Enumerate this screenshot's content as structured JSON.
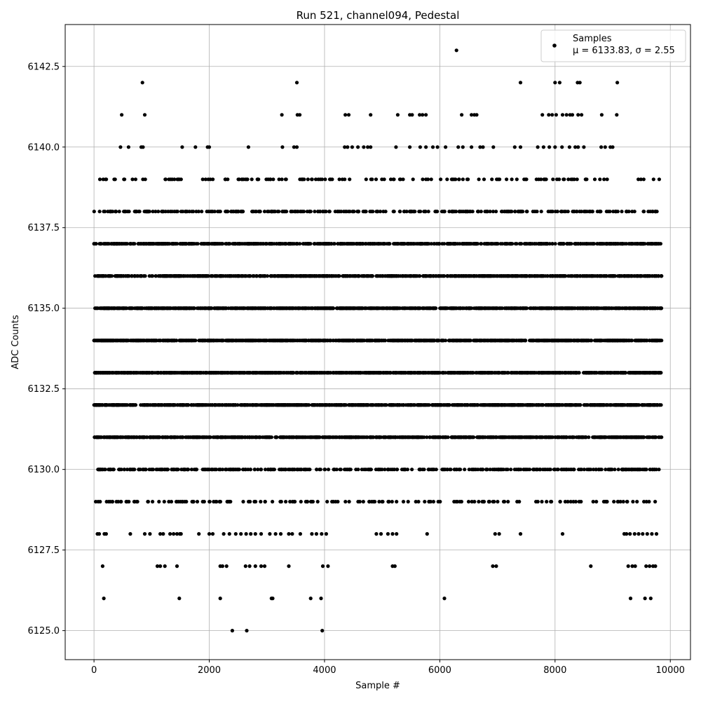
{
  "chart_data": {
    "type": "scatter",
    "title": "Run 521, channel094, Pedestal",
    "xlabel": "Sample #",
    "ylabel": "ADC Counts",
    "xlim": [
      -500,
      10350
    ],
    "ylim": [
      6124.1,
      6143.8
    ],
    "xticks": [
      0,
      2000,
      4000,
      6000,
      8000,
      10000
    ],
    "xtick_labels": [
      "0",
      "2000",
      "4000",
      "6000",
      "8000",
      "10000"
    ],
    "yticks": [
      6125.0,
      6127.5,
      6130.0,
      6132.5,
      6135.0,
      6137.5,
      6140.0,
      6142.5
    ],
    "ytick_labels": [
      "6125.0",
      "6127.5",
      "6130.0",
      "6132.5",
      "6135.0",
      "6137.5",
      "6140.0",
      "6142.5"
    ],
    "grid": true,
    "legend_position": "top-right",
    "series": [
      {
        "name": "Samples",
        "color": "#000000",
        "marker": "circle",
        "annotation": "μ = 6133.83, σ = 2.55",
        "bands": [
          {
            "y": 6131,
            "n": 900,
            "gaps": []
          },
          {
            "y": 6132,
            "n": 1050,
            "gaps": []
          },
          {
            "y": 6133,
            "n": 1180,
            "gaps": []
          },
          {
            "y": 6134,
            "n": 1230,
            "gaps": []
          },
          {
            "y": 6135,
            "n": 1120,
            "gaps": []
          },
          {
            "y": 6136,
            "n": 880,
            "gaps": []
          },
          {
            "y": 6137,
            "n": 760,
            "gaps": []
          },
          {
            "y": 6130,
            "n": 420,
            "gaps": []
          },
          {
            "y": 6138,
            "n": 330,
            "gaps": []
          },
          {
            "y": 6129,
            "n": 170,
            "gaps": []
          },
          {
            "y": 6139,
            "n": 140,
            "gaps": []
          }
        ],
        "points": [
          [
            150,
            6127
          ],
          [
            170,
            6126
          ],
          [
            1100,
            6127
          ],
          [
            1150,
            6127
          ],
          [
            1230,
            6127
          ],
          [
            1440,
            6127
          ],
          [
            1480,
            6126
          ],
          [
            2190,
            6127
          ],
          [
            2230,
            6127
          ],
          [
            2300,
            6127
          ],
          [
            2190,
            6126
          ],
          [
            2400,
            6125
          ],
          [
            2650,
            6125
          ],
          [
            2630,
            6127
          ],
          [
            2700,
            6127
          ],
          [
            2800,
            6127
          ],
          [
            2900,
            6127
          ],
          [
            2960,
            6127
          ],
          [
            3080,
            6126
          ],
          [
            3100,
            6126
          ],
          [
            3380,
            6127
          ],
          [
            3760,
            6126
          ],
          [
            3940,
            6126
          ],
          [
            3960,
            6125
          ],
          [
            3970,
            6127
          ],
          [
            4060,
            6127
          ],
          [
            5180,
            6127
          ],
          [
            5220,
            6127
          ],
          [
            6080,
            6126
          ],
          [
            6920,
            6127
          ],
          [
            6980,
            6127
          ],
          [
            8620,
            6127
          ],
          [
            9270,
            6127
          ],
          [
            9340,
            6127
          ],
          [
            9390,
            6127
          ],
          [
            9310,
            6126
          ],
          [
            9560,
            6126
          ],
          [
            9660,
            6126
          ],
          [
            9580,
            6127
          ],
          [
            9640,
            6127
          ],
          [
            9700,
            6127
          ],
          [
            9740,
            6127
          ],
          [
            60,
            6128
          ],
          [
            90,
            6128
          ],
          [
            180,
            6128
          ],
          [
            210,
            6128
          ],
          [
            630,
            6128
          ],
          [
            880,
            6128
          ],
          [
            970,
            6128
          ],
          [
            1150,
            6128
          ],
          [
            1200,
            6128
          ],
          [
            1320,
            6128
          ],
          [
            1380,
            6128
          ],
          [
            1440,
            6128
          ],
          [
            1490,
            6128
          ],
          [
            1510,
            6128
          ],
          [
            1820,
            6128
          ],
          [
            2000,
            6128
          ],
          [
            2060,
            6128
          ],
          [
            2250,
            6128
          ],
          [
            2350,
            6128
          ],
          [
            2460,
            6128
          ],
          [
            2550,
            6128
          ],
          [
            2640,
            6128
          ],
          [
            2720,
            6128
          ],
          [
            2800,
            6128
          ],
          [
            2900,
            6128
          ],
          [
            3050,
            6128
          ],
          [
            3150,
            6128
          ],
          [
            3240,
            6128
          ],
          [
            3380,
            6128
          ],
          [
            3440,
            6128
          ],
          [
            3580,
            6128
          ],
          [
            3780,
            6128
          ],
          [
            3860,
            6128
          ],
          [
            3950,
            6128
          ],
          [
            4030,
            6128
          ],
          [
            4900,
            6128
          ],
          [
            4980,
            6128
          ],
          [
            5100,
            6128
          ],
          [
            5180,
            6128
          ],
          [
            5250,
            6128
          ],
          [
            5780,
            6128
          ],
          [
            6960,
            6128
          ],
          [
            7030,
            6128
          ],
          [
            7400,
            6128
          ],
          [
            8130,
            6128
          ],
          [
            9200,
            6128
          ],
          [
            9240,
            6128
          ],
          [
            9300,
            6128
          ],
          [
            9380,
            6128
          ],
          [
            9450,
            6128
          ],
          [
            9520,
            6128
          ],
          [
            9600,
            6128
          ],
          [
            9680,
            6128
          ],
          [
            9760,
            6128
          ],
          [
            460,
            6140
          ],
          [
            600,
            6140
          ],
          [
            820,
            6140
          ],
          [
            850,
            6140
          ],
          [
            1530,
            6140
          ],
          [
            1760,
            6140
          ],
          [
            1970,
            6140
          ],
          [
            2000,
            6140
          ],
          [
            2680,
            6140
          ],
          [
            3270,
            6140
          ],
          [
            3470,
            6140
          ],
          [
            3520,
            6140
          ],
          [
            4350,
            6140
          ],
          [
            4400,
            6140
          ],
          [
            4480,
            6140
          ],
          [
            4580,
            6140
          ],
          [
            4680,
            6140
          ],
          [
            4750,
            6140
          ],
          [
            4800,
            6140
          ],
          [
            5240,
            6140
          ],
          [
            5480,
            6140
          ],
          [
            5660,
            6140
          ],
          [
            5760,
            6140
          ],
          [
            5880,
            6140
          ],
          [
            5960,
            6140
          ],
          [
            6100,
            6140
          ],
          [
            6320,
            6140
          ],
          [
            6400,
            6140
          ],
          [
            6550,
            6140
          ],
          [
            6700,
            6140
          ],
          [
            6750,
            6140
          ],
          [
            6930,
            6140
          ],
          [
            7300,
            6140
          ],
          [
            7400,
            6140
          ],
          [
            7700,
            6140
          ],
          [
            7800,
            6140
          ],
          [
            7900,
            6140
          ],
          [
            8000,
            6140
          ],
          [
            8120,
            6140
          ],
          [
            8250,
            6140
          ],
          [
            8350,
            6140
          ],
          [
            8400,
            6140
          ],
          [
            8500,
            6140
          ],
          [
            8800,
            6140
          ],
          [
            8870,
            6140
          ],
          [
            8960,
            6140
          ],
          [
            9000,
            6140
          ],
          [
            480,
            6141
          ],
          [
            880,
            6141
          ],
          [
            3260,
            6141
          ],
          [
            3530,
            6141
          ],
          [
            3570,
            6141
          ],
          [
            4360,
            6141
          ],
          [
            4420,
            6141
          ],
          [
            4800,
            6141
          ],
          [
            5270,
            6141
          ],
          [
            5480,
            6141
          ],
          [
            5520,
            6141
          ],
          [
            5650,
            6141
          ],
          [
            5700,
            6141
          ],
          [
            5760,
            6141
          ],
          [
            6380,
            6141
          ],
          [
            6550,
            6141
          ],
          [
            6600,
            6141
          ],
          [
            6640,
            6141
          ],
          [
            7780,
            6141
          ],
          [
            7890,
            6141
          ],
          [
            7950,
            6141
          ],
          [
            8020,
            6141
          ],
          [
            8130,
            6141
          ],
          [
            8200,
            6141
          ],
          [
            8260,
            6141
          ],
          [
            8300,
            6141
          ],
          [
            8400,
            6141
          ],
          [
            8460,
            6141
          ],
          [
            8810,
            6141
          ],
          [
            9070,
            6141
          ],
          [
            840,
            6142
          ],
          [
            3520,
            6142
          ],
          [
            7400,
            6142
          ],
          [
            8000,
            6142
          ],
          [
            8080,
            6142
          ],
          [
            8390,
            6142
          ],
          [
            8430,
            6142
          ],
          [
            9080,
            6142
          ],
          [
            6290,
            6143
          ]
        ]
      }
    ]
  },
  "legend": {
    "series_label": "Samples",
    "stats_label": "μ = 6133.83, σ = 2.55"
  }
}
